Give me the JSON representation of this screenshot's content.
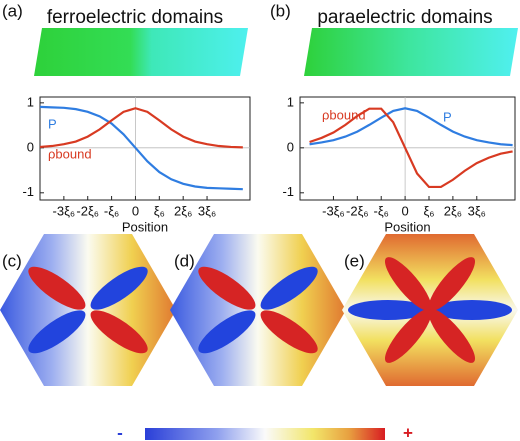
{
  "panel_labels": [
    "(a)",
    "(b)",
    "(c)",
    "(d)",
    "(e)"
  ],
  "colorbar": {
    "low": "-",
    "high": "+"
  },
  "chart_data": [
    {
      "type": "line",
      "title": "ferroelectric domains",
      "x_label": "Position",
      "x": [
        -4,
        -3.5,
        -3,
        -2.5,
        -2,
        -1.5,
        -1,
        -0.5,
        0,
        0.5,
        1,
        1.5,
        2,
        2.5,
        3,
        3.5,
        4,
        4.5
      ],
      "series": [
        {
          "name": "P",
          "color": "#2f7de1",
          "values": [
            0.91,
            0.9,
            0.89,
            0.86,
            0.8,
            0.7,
            0.54,
            0.3,
            0,
            -0.3,
            -0.54,
            -0.7,
            -0.8,
            -0.86,
            -0.89,
            -0.9,
            -0.91,
            -0.92
          ]
        },
        {
          "name": "ρbound",
          "color": "#d83a22",
          "values": [
            0.02,
            0.04,
            0.08,
            0.14,
            0.25,
            0.41,
            0.61,
            0.8,
            0.88,
            0.8,
            0.61,
            0.41,
            0.25,
            0.14,
            0.08,
            0.04,
            0.02,
            0.01
          ]
        }
      ],
      "xlim": [
        -4,
        4.8
      ],
      "ylim": [
        -1.16,
        1.13
      ],
      "xticks": [
        {
          "value": -3,
          "label": "-3ξ₆"
        },
        {
          "value": -2,
          "label": "-2ξ₆"
        },
        {
          "value": -1,
          "label": "-ξ₆"
        },
        0,
        {
          "value": 1,
          "label": "ξ₆"
        },
        {
          "value": 2,
          "label": "2ξ₆"
        },
        {
          "value": 3,
          "label": "3ξ₆"
        }
      ],
      "yticks": [
        -1,
        0,
        1
      ]
    },
    {
      "type": "line",
      "title": "paraelectric domains",
      "x_label": "Position",
      "x": [
        -4,
        -3.5,
        -3,
        -2.5,
        -2,
        -1.5,
        -1,
        -0.5,
        0,
        0.5,
        1,
        1.5,
        2,
        2.5,
        3,
        3.5,
        4,
        4.5
      ],
      "series": [
        {
          "name": "P",
          "color": "#2f7de1",
          "values": [
            0.08,
            0.12,
            0.17,
            0.25,
            0.36,
            0.51,
            0.67,
            0.82,
            0.88,
            0.82,
            0.67,
            0.51,
            0.36,
            0.25,
            0.17,
            0.12,
            0.08,
            0.06
          ]
        },
        {
          "name": "ρbound",
          "color": "#d83a22",
          "values": [
            0.13,
            0.22,
            0.34,
            0.51,
            0.71,
            0.87,
            0.87,
            0.57,
            0,
            -0.57,
            -0.87,
            -0.87,
            -0.71,
            -0.51,
            -0.34,
            -0.22,
            -0.13,
            -0.08
          ]
        }
      ],
      "xlim": [
        -4.4,
        4.6
      ],
      "ylim": [
        -1.16,
        1.13
      ],
      "xticks": [
        {
          "value": -3,
          "label": "-3ξ₆"
        },
        {
          "value": -2,
          "label": "-2ξ₆"
        },
        {
          "value": -1,
          "label": "-ξ₆"
        },
        0,
        {
          "value": 1,
          "label": "ξ₆"
        },
        {
          "value": 2,
          "label": "2ξ₆"
        },
        {
          "value": 3,
          "label": "3ξ₆"
        }
      ],
      "yticks": [
        -1,
        0,
        1
      ]
    }
  ]
}
